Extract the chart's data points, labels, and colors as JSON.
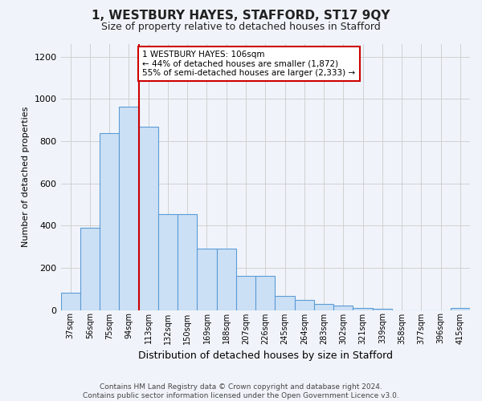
{
  "title": "1, WESTBURY HAYES, STAFFORD, ST17 9QY",
  "subtitle": "Size of property relative to detached houses in Stafford",
  "xlabel": "Distribution of detached houses by size in Stafford",
  "ylabel": "Number of detached properties",
  "categories": [
    "37sqm",
    "56sqm",
    "75sqm",
    "94sqm",
    "113sqm",
    "132sqm",
    "150sqm",
    "169sqm",
    "188sqm",
    "207sqm",
    "226sqm",
    "245sqm",
    "264sqm",
    "283sqm",
    "302sqm",
    "321sqm",
    "339sqm",
    "358sqm",
    "377sqm",
    "396sqm",
    "415sqm"
  ],
  "values": [
    80,
    390,
    840,
    965,
    870,
    455,
    455,
    290,
    290,
    160,
    160,
    65,
    47,
    30,
    20,
    10,
    5,
    0,
    0,
    0,
    10
  ],
  "bar_color": "#cce0f5",
  "bar_edge_color": "#5b9bd5",
  "reference_line_color": "#cc0000",
  "annotation_box_edge_color": "#cc0000",
  "annotation_box_face_color": "#ffffff",
  "annotation_label": "1 WESTBURY HAYES: 106sqm",
  "annotation_line1": "← 44% of detached houses are smaller (1,872)",
  "annotation_line2": "55% of semi-detached houses are larger (2,333) →",
  "grid_color": "#d0d0d0",
  "background_color": "#f0f4fa",
  "footer_line1": "Contains HM Land Registry data © Crown copyright and database right 2024.",
  "footer_line2": "Contains public sector information licensed under the Open Government Licence v3.0.",
  "ylim": [
    0,
    1260
  ],
  "yticks": [
    0,
    200,
    400,
    600,
    800,
    1000,
    1200
  ]
}
